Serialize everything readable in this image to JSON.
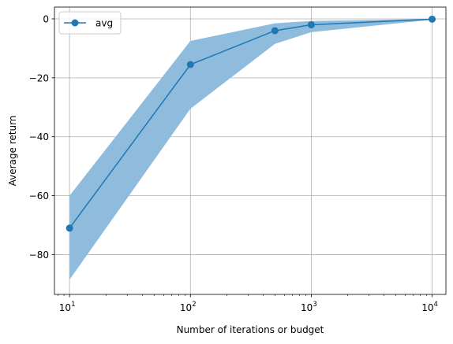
{
  "chart_data": {
    "type": "line",
    "xscale": "log",
    "x": [
      10,
      100,
      500,
      1000,
      10000
    ],
    "series": [
      {
        "name": "avg",
        "values": [
          -71,
          -15.5,
          -4,
          -2,
          -0.1
        ],
        "band_upper": [
          -60,
          -7.5,
          -1.5,
          -0.7,
          0
        ],
        "band_lower": [
          -88.5,
          -30.5,
          -8.5,
          -4.5,
          -0.3
        ],
        "color": "#1f77b4",
        "band_color": "#8fbbdd"
      }
    ],
    "xlabel": "Number of iterations or budget",
    "ylabel": "Average return",
    "xlim": [
      7.5,
      13000
    ],
    "ylim": [
      -93.5,
      4
    ],
    "xticks": [
      {
        "value": 10,
        "base": "10",
        "exp": "1"
      },
      {
        "value": 100,
        "base": "10",
        "exp": "2"
      },
      {
        "value": 1000,
        "base": "10",
        "exp": "3"
      },
      {
        "value": 10000,
        "base": "10",
        "exp": "4"
      }
    ],
    "yticks": [
      {
        "value": 0,
        "label": "0"
      },
      {
        "value": -20,
        "label": "−20"
      },
      {
        "value": -40,
        "label": "−40"
      },
      {
        "value": -60,
        "label": "−60"
      },
      {
        "value": -80,
        "label": "−80"
      }
    ],
    "grid": true,
    "legend_position": "upper-left"
  }
}
